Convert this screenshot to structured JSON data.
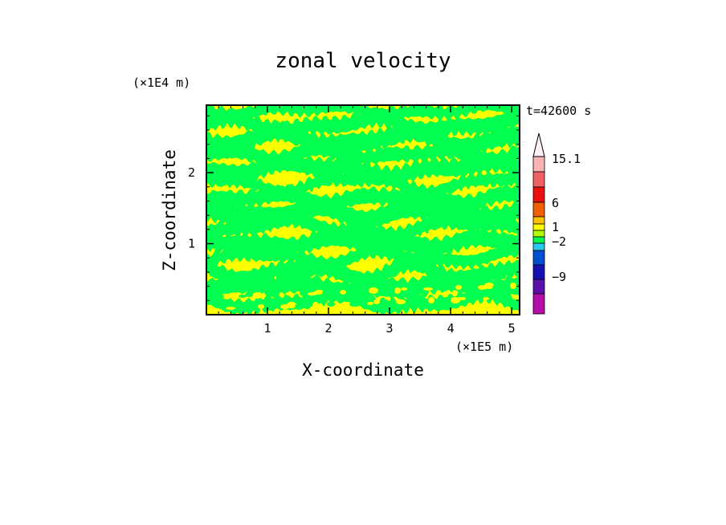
{
  "chart_data": {
    "type": "heatmap",
    "title": "zonal velocity",
    "xlabel": "X-coordinate",
    "ylabel": "Z-coordinate",
    "x_unit": "(×1E5 m)",
    "y_unit": "(×1E4 m)",
    "time_label": "t=42600  s",
    "xlim": [
      0,
      5.13
    ],
    "ylim": [
      0,
      2.95
    ],
    "x_ticks": [
      1,
      2,
      3,
      4,
      5
    ],
    "y_ticks": [
      1,
      2
    ],
    "grid": false,
    "colorbar": {
      "levels": [
        {
          "color": "#ff1aa8"
        },
        {
          "color": "#b40fa8"
        },
        {
          "color": "#5a10a8"
        },
        {
          "color": "#1810b0"
        },
        {
          "color": "#0050d0"
        },
        {
          "color": "#28c8f0"
        },
        {
          "color": "#00ff50"
        },
        {
          "color": "#b0ff00"
        },
        {
          "color": "#ffff00"
        },
        {
          "color": "#ffc000"
        },
        {
          "color": "#f06000"
        },
        {
          "color": "#e81010"
        },
        {
          "color": "#f06060"
        },
        {
          "color": "#f8b4b4"
        },
        {
          "color": "#fff0f0"
        }
      ],
      "labels": [
        "15.1",
        "6",
        "1",
        "−2",
        "−9"
      ]
    },
    "dominant_colors": {
      "green": "#00ff50",
      "yellow": "#ffff00"
    }
  }
}
